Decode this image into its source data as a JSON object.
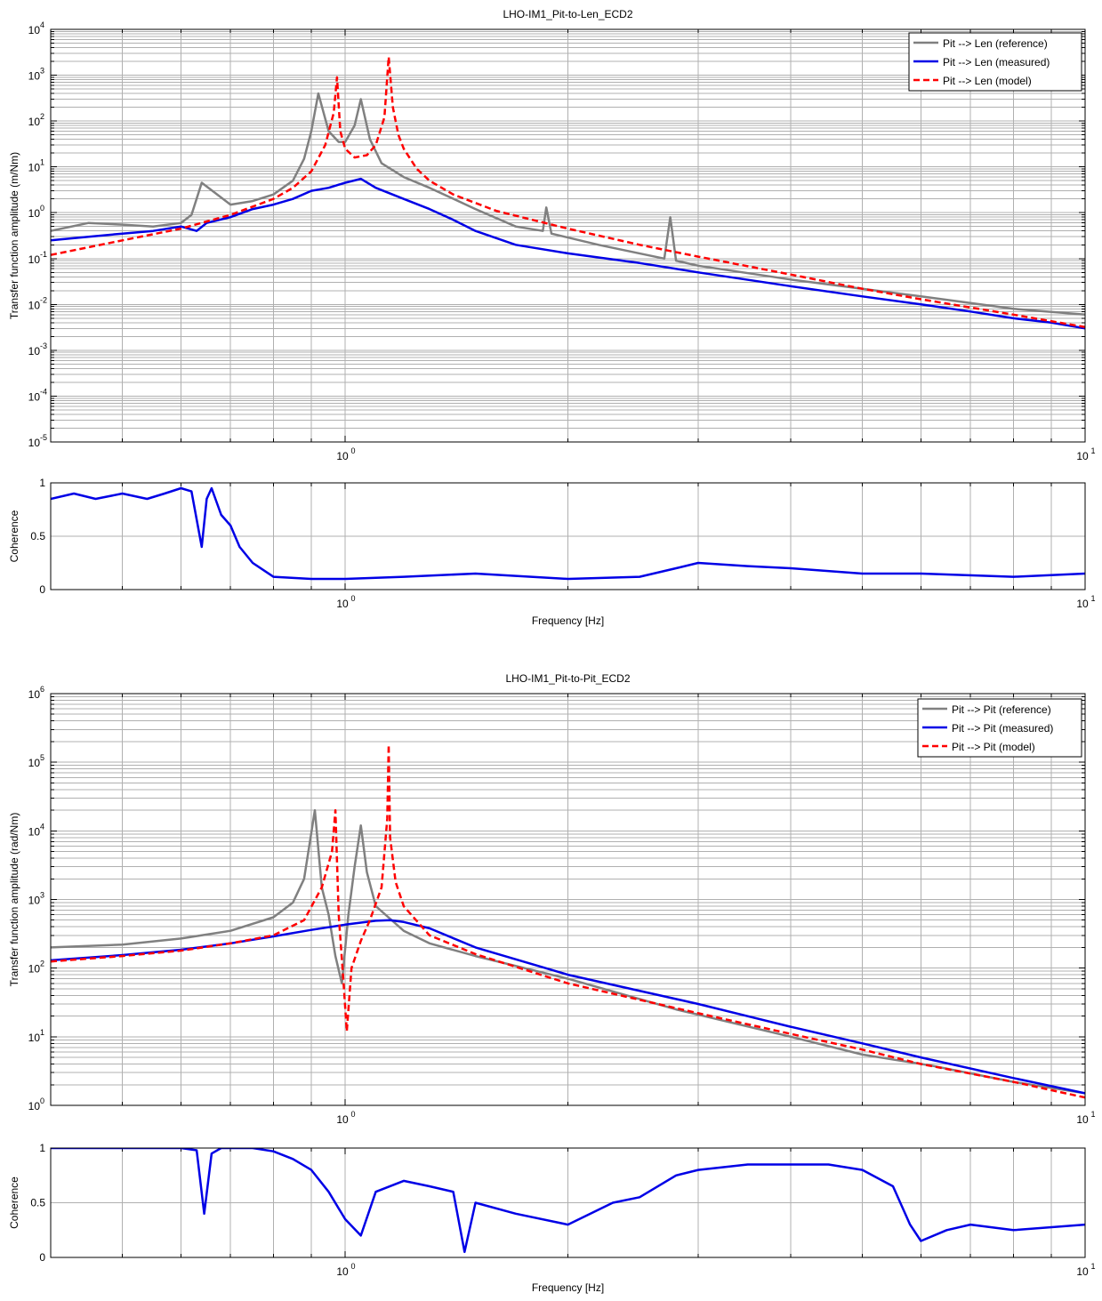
{
  "chart_data": [
    {
      "type": "line",
      "title": "LHO-IM1_Pit-to-Len_ECD2",
      "ylabel": "Transfer function amplitude (m/Nm)",
      "xlabel": "",
      "xscale": "log",
      "yscale": "log",
      "xlim": [
        0.4,
        10
      ],
      "ylim": [
        1e-05,
        10000
      ],
      "grid": true,
      "legend_position": "top-right",
      "xticks": [
        {
          "value": 1,
          "base": "10",
          "exp": "0"
        },
        {
          "value": 10,
          "base": "10",
          "exp": "1"
        }
      ],
      "yticks": [
        {
          "value": 1e-05,
          "base": "10",
          "exp": "-5"
        },
        {
          "value": 0.0001,
          "base": "10",
          "exp": "-4"
        },
        {
          "value": 0.001,
          "base": "10",
          "exp": "-3"
        },
        {
          "value": 0.01,
          "base": "10",
          "exp": "-2"
        },
        {
          "value": 0.1,
          "base": "10",
          "exp": "-1"
        },
        {
          "value": 1,
          "base": "10",
          "exp": "0"
        },
        {
          "value": 10,
          "base": "10",
          "exp": "1"
        },
        {
          "value": 100,
          "base": "10",
          "exp": "2"
        },
        {
          "value": 1000,
          "base": "10",
          "exp": "3"
        },
        {
          "value": 10000,
          "base": "10",
          "exp": "4"
        }
      ],
      "series": [
        {
          "name": "Pit --> Len (reference)",
          "color": "#808080",
          "style": "solid",
          "x": [
            0.4,
            0.45,
            0.5,
            0.55,
            0.6,
            0.62,
            0.64,
            0.7,
            0.75,
            0.8,
            0.85,
            0.88,
            0.9,
            0.92,
            0.95,
            0.98,
            1.0,
            1.03,
            1.05,
            1.08,
            1.12,
            1.2,
            1.3,
            1.5,
            1.7,
            1.85,
            1.87,
            1.9,
            2.2,
            2.7,
            2.75,
            2.8,
            3.0,
            4.0,
            5.0,
            6.0,
            8.0,
            10.0
          ],
          "y": [
            0.4,
            0.6,
            0.55,
            0.5,
            0.6,
            0.9,
            4.5,
            1.5,
            1.8,
            2.5,
            5,
            15,
            60,
            400,
            60,
            35,
            35,
            80,
            300,
            40,
            12,
            6,
            3.5,
            1.2,
            0.5,
            0.4,
            1.3,
            0.35,
            0.2,
            0.1,
            0.8,
            0.09,
            0.07,
            0.035,
            0.022,
            0.015,
            0.008,
            0.006
          ]
        },
        {
          "name": "Pit --> Len (measured)",
          "color": "#0000e6",
          "style": "solid",
          "x": [
            0.4,
            0.45,
            0.5,
            0.55,
            0.6,
            0.63,
            0.65,
            0.7,
            0.75,
            0.8,
            0.85,
            0.9,
            0.95,
            1.0,
            1.05,
            1.1,
            1.2,
            1.3,
            1.4,
            1.5,
            1.7,
            2.0,
            2.5,
            3.0,
            4.0,
            5.0,
            6.0,
            7.0,
            8.0,
            9.0,
            10.0
          ],
          "y": [
            0.25,
            0.3,
            0.35,
            0.4,
            0.5,
            0.4,
            0.6,
            0.8,
            1.2,
            1.5,
            2,
            3,
            3.5,
            4.5,
            5.5,
            3.5,
            2,
            1.2,
            0.7,
            0.4,
            0.2,
            0.13,
            0.08,
            0.05,
            0.025,
            0.015,
            0.01,
            0.007,
            0.005,
            0.004,
            0.003
          ]
        },
        {
          "name": "Pit --> Len (model)",
          "color": "#ff0000",
          "style": "dashed",
          "x": [
            0.4,
            0.5,
            0.6,
            0.7,
            0.8,
            0.85,
            0.9,
            0.94,
            0.965,
            0.975,
            0.985,
            1.0,
            1.03,
            1.07,
            1.1,
            1.13,
            1.145,
            1.16,
            1.18,
            1.2,
            1.25,
            1.3,
            1.4,
            1.6,
            2.0,
            2.5,
            3.0,
            4.0,
            5.0,
            6.0,
            8.0,
            10.0
          ],
          "y": [
            0.12,
            0.25,
            0.45,
            0.9,
            2,
            3.5,
            8,
            30,
            150,
            900,
            60,
            25,
            16,
            18,
            30,
            120,
            2500,
            200,
            50,
            25,
            9,
            5,
            2.5,
            1.1,
            0.45,
            0.2,
            0.11,
            0.045,
            0.022,
            0.013,
            0.006,
            0.0032
          ]
        }
      ]
    },
    {
      "type": "line",
      "title": "",
      "ylabel": "Coherence",
      "xlabel": "Frequency [Hz]",
      "xscale": "log",
      "yscale": "linear",
      "xlim": [
        0.4,
        10
      ],
      "ylim": [
        0,
        1
      ],
      "grid": true,
      "xticks": [
        {
          "value": 1,
          "base": "10",
          "exp": "0"
        },
        {
          "value": 10,
          "base": "10",
          "exp": "1"
        }
      ],
      "yticks": [
        {
          "value": 0,
          "label": "0"
        },
        {
          "value": 0.5,
          "label": "0.5"
        },
        {
          "value": 1,
          "label": "1"
        }
      ],
      "series": [
        {
          "name": "",
          "color": "#0000e6",
          "style": "solid",
          "x": [
            0.4,
            0.43,
            0.46,
            0.5,
            0.54,
            0.57,
            0.6,
            0.62,
            0.64,
            0.65,
            0.66,
            0.68,
            0.7,
            0.72,
            0.75,
            0.8,
            0.9,
            1.0,
            1.2,
            1.5,
            2.0,
            2.5,
            2.8,
            3.0,
            3.5,
            4.0,
            5.0,
            6.0,
            8.0,
            10.0
          ],
          "y": [
            0.85,
            0.9,
            0.85,
            0.9,
            0.85,
            0.9,
            0.95,
            0.92,
            0.4,
            0.85,
            0.95,
            0.7,
            0.6,
            0.4,
            0.25,
            0.12,
            0.1,
            0.1,
            0.12,
            0.15,
            0.1,
            0.12,
            0.2,
            0.25,
            0.22,
            0.2,
            0.15,
            0.15,
            0.12,
            0.15
          ]
        }
      ]
    },
    {
      "type": "line",
      "title": "LHO-IM1_Pit-to-Pit_ECD2",
      "ylabel": "Transfer function amplitude (rad/Nm)",
      "xlabel": "",
      "xscale": "log",
      "yscale": "log",
      "xlim": [
        0.4,
        10
      ],
      "ylim": [
        1,
        1000000
      ],
      "grid": true,
      "legend_position": "top-right",
      "xticks": [
        {
          "value": 1,
          "base": "10",
          "exp": "0"
        },
        {
          "value": 10,
          "base": "10",
          "exp": "1"
        }
      ],
      "yticks": [
        {
          "value": 1,
          "base": "10",
          "exp": "0"
        },
        {
          "value": 10,
          "base": "10",
          "exp": "1"
        },
        {
          "value": 100,
          "base": "10",
          "exp": "2"
        },
        {
          "value": 1000,
          "base": "10",
          "exp": "3"
        },
        {
          "value": 10000,
          "base": "10",
          "exp": "4"
        },
        {
          "value": 100000,
          "base": "10",
          "exp": "5"
        },
        {
          "value": 1000000,
          "base": "10",
          "exp": "6"
        }
      ],
      "series": [
        {
          "name": "Pit --> Pit (reference)",
          "color": "#808080",
          "style": "solid",
          "x": [
            0.4,
            0.5,
            0.6,
            0.7,
            0.8,
            0.85,
            0.88,
            0.91,
            0.93,
            0.95,
            0.97,
            0.99,
            1.01,
            1.03,
            1.05,
            1.07,
            1.1,
            1.2,
            1.3,
            1.5,
            2.0,
            2.8,
            3.0,
            4.0,
            5.0,
            6.2,
            8.0,
            10.0
          ],
          "y": [
            200,
            220,
            270,
            350,
            550,
            900,
            2000,
            20000,
            1500,
            600,
            150,
            60,
            600,
            3000,
            12000,
            2500,
            800,
            350,
            230,
            150,
            70,
            25,
            21,
            10,
            5.5,
            3.8,
            2.2,
            1.5
          ]
        },
        {
          "name": "Pit --> Pit (measured)",
          "color": "#0000e6",
          "style": "solid",
          "x": [
            0.4,
            0.5,
            0.6,
            0.7,
            0.8,
            0.9,
            1.0,
            1.1,
            1.15,
            1.2,
            1.3,
            1.5,
            2.0,
            3.0,
            4.0,
            5.0,
            6.0,
            8.0,
            10.0
          ],
          "y": [
            130,
            155,
            185,
            230,
            290,
            360,
            430,
            490,
            500,
            470,
            380,
            200,
            80,
            30,
            14,
            8,
            5,
            2.5,
            1.5
          ]
        },
        {
          "name": "Pit --> Pit (model)",
          "color": "#ff0000",
          "style": "dashed",
          "x": [
            0.4,
            0.5,
            0.6,
            0.7,
            0.8,
            0.88,
            0.93,
            0.96,
            0.97,
            0.98,
            0.995,
            1.005,
            1.02,
            1.05,
            1.08,
            1.12,
            1.14,
            1.145,
            1.15,
            1.17,
            1.2,
            1.3,
            1.5,
            2.0,
            3.0,
            4.0,
            5.0,
            6.0,
            8.0,
            10.0
          ],
          "y": [
            125,
            150,
            180,
            230,
            300,
            500,
            1500,
            5000,
            20000,
            600,
            60,
            12,
            100,
            250,
            500,
            1500,
            15000,
            180000,
            8000,
            1800,
            800,
            300,
            160,
            60,
            22,
            11,
            6.5,
            4,
            2.2,
            1.3
          ]
        }
      ]
    },
    {
      "type": "line",
      "title": "",
      "ylabel": "Coherence",
      "xlabel": "Frequency [Hz]",
      "xscale": "log",
      "yscale": "linear",
      "xlim": [
        0.4,
        10
      ],
      "ylim": [
        0,
        1
      ],
      "grid": true,
      "xticks": [
        {
          "value": 1,
          "base": "10",
          "exp": "0"
        },
        {
          "value": 10,
          "base": "10",
          "exp": "1"
        }
      ],
      "yticks": [
        {
          "value": 0,
          "label": "0"
        },
        {
          "value": 0.5,
          "label": "0.5"
        },
        {
          "value": 1,
          "label": "1"
        }
      ],
      "series": [
        {
          "name": "",
          "color": "#0000e6",
          "style": "solid",
          "x": [
            0.4,
            0.5,
            0.6,
            0.63,
            0.645,
            0.66,
            0.68,
            0.75,
            0.8,
            0.85,
            0.9,
            0.95,
            1.0,
            1.05,
            1.1,
            1.2,
            1.3,
            1.4,
            1.45,
            1.5,
            1.7,
            2.0,
            2.3,
            2.5,
            2.8,
            3.0,
            3.5,
            4.0,
            4.5,
            5.0,
            5.5,
            5.8,
            6.0,
            6.5,
            7.0,
            8.0,
            10.0
          ],
          "y": [
            1,
            1,
            1,
            0.98,
            0.4,
            0.95,
            1,
            1,
            0.97,
            0.9,
            0.8,
            0.6,
            0.35,
            0.2,
            0.6,
            0.7,
            0.65,
            0.6,
            0.05,
            0.5,
            0.4,
            0.3,
            0.5,
            0.55,
            0.75,
            0.8,
            0.85,
            0.85,
            0.85,
            0.8,
            0.65,
            0.3,
            0.15,
            0.25,
            0.3,
            0.25,
            0.3
          ]
        }
      ]
    }
  ]
}
